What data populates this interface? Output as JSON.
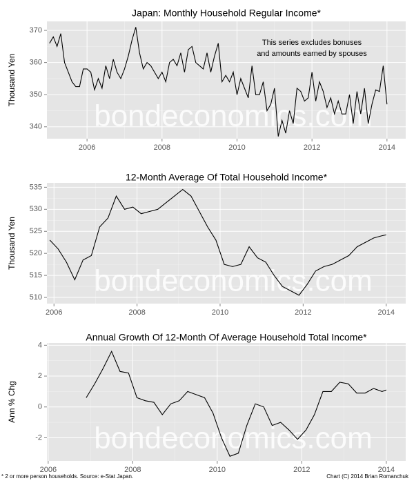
{
  "chart_data": [
    {
      "type": "line",
      "title": "Japan: Monthly Household Regular Income*",
      "ylabel": "Thousand Yen",
      "annotation": [
        "This series excludes bonuses",
        "and amounts earned by spouses"
      ],
      "color": "#000000",
      "grid": true,
      "xlim": [
        2004.93,
        2014.5
      ],
      "xticks": [
        2006,
        2008,
        2010,
        2012,
        2014
      ],
      "ylim": [
        336.3,
        372.8
      ],
      "yticks": [
        340,
        350,
        360,
        370
      ],
      "x": [
        2005,
        2005.1,
        2005.2,
        2005.3,
        2005.4,
        2005.5,
        2005.6,
        2005.7,
        2005.8,
        2005.9,
        2006,
        2006.1,
        2006.2,
        2006.3,
        2006.4,
        2006.5,
        2006.6,
        2006.7,
        2006.8,
        2006.9,
        2007,
        2007.1,
        2007.2,
        2007.3,
        2007.4,
        2007.5,
        2007.6,
        2007.7,
        2007.8,
        2007.9,
        2008,
        2008.1,
        2008.2,
        2008.3,
        2008.4,
        2008.5,
        2008.6,
        2008.7,
        2008.8,
        2008.9,
        2009,
        2009.1,
        2009.2,
        2009.3,
        2009.4,
        2009.5,
        2009.6,
        2009.7,
        2009.8,
        2009.9,
        2010,
        2010.1,
        2010.2,
        2010.3,
        2010.4,
        2010.5,
        2010.6,
        2010.7,
        2010.8,
        2010.9,
        2011,
        2011.1,
        2011.2,
        2011.3,
        2011.4,
        2011.5,
        2011.6,
        2011.7,
        2011.8,
        2011.9,
        2012,
        2012.1,
        2012.2,
        2012.3,
        2012.4,
        2012.5,
        2012.6,
        2012.7,
        2012.8,
        2012.9,
        2013,
        2013.1,
        2013.2,
        2013.3,
        2013.4,
        2013.5,
        2013.6,
        2013.7,
        2013.8,
        2013.9,
        2014
      ],
      "values": [
        366,
        368,
        365,
        369,
        360,
        357,
        354,
        352.5,
        352.5,
        358,
        358,
        357,
        351.5,
        355,
        352,
        359,
        355,
        361,
        357,
        355,
        358,
        362,
        367,
        371,
        363,
        358,
        360,
        359,
        357,
        355,
        357,
        354,
        360,
        361,
        359,
        363,
        357,
        364,
        365,
        360,
        359,
        358,
        363,
        357,
        362,
        366,
        354,
        356,
        354,
        357,
        350,
        355,
        352,
        349,
        359,
        350,
        350,
        354,
        345,
        347,
        352,
        337,
        342,
        338,
        345,
        341,
        352,
        351,
        348,
        349,
        357,
        348,
        354,
        351,
        346,
        349,
        344,
        348,
        344,
        344,
        350,
        341,
        351,
        344,
        352,
        341,
        347,
        351.5,
        351,
        359,
        347
      ]
    },
    {
      "type": "line",
      "title": "12-Month Average Of Total Household Income*",
      "ylabel": "Thousand Yen",
      "color": "#000000",
      "grid": true,
      "xlim": [
        2005.83,
        2014.47
      ],
      "xticks": [
        2006,
        2008,
        2010,
        2012,
        2014
      ],
      "ylim": [
        508.6,
        536
      ],
      "yticks": [
        510,
        515,
        520,
        525,
        530,
        535
      ],
      "x": [
        2005.9,
        2006.1,
        2006.3,
        2006.5,
        2006.7,
        2006.9,
        2007.1,
        2007.3,
        2007.5,
        2007.7,
        2007.9,
        2008.1,
        2008.3,
        2008.5,
        2008.7,
        2008.9,
        2009.1,
        2009.3,
        2009.5,
        2009.7,
        2009.9,
        2010.1,
        2010.3,
        2010.5,
        2010.7,
        2010.9,
        2011.1,
        2011.3,
        2011.5,
        2011.7,
        2011.9,
        2012.1,
        2012.3,
        2012.5,
        2012.7,
        2012.9,
        2013.1,
        2013.3,
        2013.5,
        2013.7,
        2013.9,
        2014
      ],
      "values": [
        523,
        521,
        518,
        514,
        518.5,
        519.5,
        526,
        528,
        533,
        530,
        530.5,
        529,
        529.5,
        530,
        531.5,
        533,
        534.5,
        533,
        529.5,
        526,
        523,
        517.5,
        517,
        517.5,
        521.5,
        519,
        518,
        515,
        512.5,
        511.5,
        510.5,
        513,
        516,
        517,
        517.5,
        518.5,
        519.5,
        521.5,
        522.5,
        523.5,
        524,
        524.2
      ]
    },
    {
      "type": "line",
      "title": "Annual Growth Of 12-Month Of Average Household Total Income*",
      "ylabel": "Ann % Chg",
      "color": "#000000",
      "grid": true,
      "xlim": [
        2005.97,
        2014.46
      ],
      "xticks": [
        2006,
        2008,
        2010,
        2012,
        2014
      ],
      "ylim": [
        -3.5,
        4.15
      ],
      "yticks": [
        -2,
        0,
        2,
        4
      ],
      "x": [
        2006.9,
        2007.1,
        2007.3,
        2007.5,
        2007.7,
        2007.9,
        2008.1,
        2008.3,
        2008.5,
        2008.7,
        2008.9,
        2009.1,
        2009.3,
        2009.5,
        2009.7,
        2009.9,
        2010.1,
        2010.3,
        2010.5,
        2010.7,
        2010.9,
        2011.1,
        2011.3,
        2011.5,
        2011.7,
        2011.9,
        2012.1,
        2012.3,
        2012.5,
        2012.7,
        2012.9,
        2013.1,
        2013.3,
        2013.5,
        2013.7,
        2013.9,
        2014
      ],
      "values": [
        0.6,
        1.5,
        2.5,
        3.6,
        2.3,
        2.2,
        0.6,
        0.4,
        0.3,
        -0.5,
        0.2,
        0.4,
        1.0,
        0.8,
        0.6,
        -0.4,
        -2.0,
        -3.2,
        -3.0,
        -1.2,
        0.2,
        0.0,
        -1.2,
        -1.0,
        -1.5,
        -2.1,
        -1.5,
        -0.5,
        1.0,
        1.0,
        1.6,
        1.5,
        0.9,
        0.9,
        1.2,
        1.0,
        1.1
      ]
    }
  ],
  "watermark": "bondeconomics.com",
  "footer_left": "* 2 or more person households. Source: e-Stat Japan.",
  "footer_right": "Chart (C) 2014 Brian Romanchuk"
}
